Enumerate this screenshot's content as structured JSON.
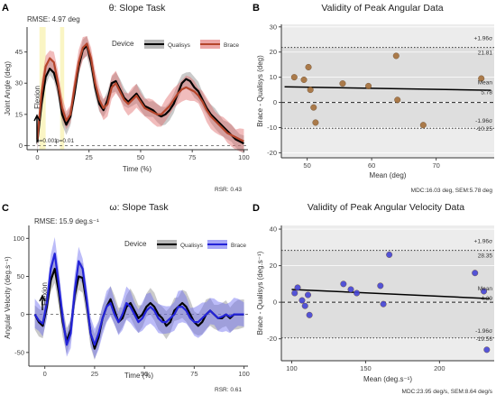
{
  "chart_data": [
    {
      "panel": "A",
      "type": "line",
      "title": "θ: Slope Task",
      "rmse": "RMSE: 4.97 deg",
      "xlabel": "Time (%)",
      "ylabel": "Joint Angle (deg)",
      "xlim": [
        -5,
        102
      ],
      "ylim": [
        -2,
        57
      ],
      "xticks": [
        0,
        25,
        50,
        75,
        100
      ],
      "yticks": [
        0,
        15,
        30,
        45
      ],
      "legend_title": "Device",
      "legend_position": "top-right",
      "annotation_dir": "Flexion",
      "pvals": [
        "p=0.001",
        "p=0.01"
      ],
      "highlight_spans": [
        [
          1,
          4
        ],
        [
          11,
          13
        ]
      ],
      "rsr": "RSR: 0.43",
      "series": [
        {
          "name": "Qualisys",
          "color": "#000000",
          "band_color": "#8a8a8a",
          "x": [
            0,
            2,
            4,
            6,
            8,
            10,
            12,
            14,
            16,
            18,
            20,
            22,
            24,
            26,
            28,
            30,
            32,
            34,
            36,
            38,
            40,
            42,
            44,
            46,
            48,
            50,
            52,
            54,
            56,
            58,
            60,
            62,
            64,
            66,
            68,
            70,
            72,
            74,
            76,
            78,
            80,
            82,
            84,
            86,
            88,
            90,
            92,
            94,
            96,
            98,
            100
          ],
          "y": [
            2,
            20,
            33,
            37,
            35,
            28,
            15,
            10,
            14,
            25,
            38,
            46,
            48,
            40,
            28,
            20,
            17,
            22,
            30,
            31,
            27,
            23,
            21,
            23,
            25,
            22,
            19,
            18,
            17,
            15,
            14,
            15,
            17,
            20,
            25,
            30,
            32,
            31,
            28,
            26,
            22,
            18,
            15,
            13,
            11,
            9,
            7,
            5,
            3,
            2,
            1
          ]
        },
        {
          "name": "Brace",
          "color": "#b5452b",
          "band_color": "#e06a6a",
          "x": [
            0,
            2,
            4,
            6,
            8,
            10,
            12,
            14,
            16,
            18,
            20,
            22,
            24,
            26,
            28,
            30,
            32,
            34,
            36,
            38,
            40,
            42,
            44,
            46,
            48,
            50,
            52,
            54,
            56,
            58,
            60,
            62,
            64,
            66,
            68,
            70,
            72,
            74,
            76,
            78,
            80,
            82,
            84,
            86,
            88,
            90,
            92,
            94,
            96,
            98,
            100
          ],
          "y": [
            3,
            25,
            38,
            42,
            40,
            30,
            18,
            12,
            15,
            28,
            40,
            47,
            49,
            42,
            30,
            22,
            18,
            20,
            28,
            30,
            26,
            22,
            20,
            22,
            24,
            21,
            18,
            17,
            16,
            15,
            15,
            17,
            19,
            22,
            25,
            27,
            28,
            27,
            26,
            24,
            21,
            17,
            14,
            12,
            10,
            8,
            6,
            5,
            4,
            3,
            2
          ]
        }
      ]
    },
    {
      "panel": "B",
      "type": "scatter",
      "title": "Validity of Peak Angular Data",
      "xlabel": "Mean (deg)",
      "ylabel": "Brace - Qualisys (deg)",
      "xlim": [
        46,
        79
      ],
      "ylim": [
        -22,
        31
      ],
      "xticks": [
        50,
        60,
        70
      ],
      "yticks": [
        -20,
        -10,
        0,
        10,
        20,
        30
      ],
      "points": [
        [
          48,
          10
        ],
        [
          49.5,
          9
        ],
        [
          50.2,
          14
        ],
        [
          50.5,
          5
        ],
        [
          51,
          -2
        ],
        [
          51.3,
          -8
        ],
        [
          55.5,
          7.5
        ],
        [
          59.5,
          6.5
        ],
        [
          63.8,
          18.5
        ],
        [
          64,
          1
        ],
        [
          68,
          -9
        ],
        [
          77,
          9.5
        ]
      ],
      "point_color": "#a5703a",
      "mean": 5.78,
      "upper": 21.81,
      "lower": -10.25,
      "labels": {
        "upper_name": "+1.96σ",
        "upper_val": "21.81",
        "mean_name": "Mean",
        "mean_val": "5.78",
        "lower_name": "-1.96σ",
        "lower_val": "-10.25"
      },
      "regression": [
        [
          46.5,
          6.2
        ],
        [
          78.5,
          4.8
        ]
      ],
      "footer": "MDC:16.03 deg, SEM:5.78 deg"
    },
    {
      "panel": "C",
      "type": "line",
      "title": "ω: Slope Task",
      "rmse": "RMSE: 15.9 deg.s⁻¹",
      "xlabel": "Time (%)",
      "ylabel": "Angular Velocity (deg.s⁻¹)",
      "xlim": [
        -8,
        102
      ],
      "ylim": [
        -68,
        117
      ],
      "xticks": [
        0,
        25,
        50,
        75,
        100
      ],
      "yticks": [
        -50,
        0,
        50,
        100
      ],
      "legend_title": "Device",
      "legend_position": "top-right",
      "annotation_dir": "Flexion",
      "rsr": "RSR: 0.61",
      "series": [
        {
          "name": "Qualisys",
          "color": "#000000",
          "band_color": "#8a8a8a",
          "x": [
            -5,
            -3,
            -1,
            1,
            3,
            5,
            7,
            9,
            11,
            13,
            15,
            17,
            19,
            21,
            23,
            25,
            27,
            29,
            31,
            33,
            35,
            37,
            39,
            41,
            43,
            45,
            47,
            49,
            51,
            53,
            55,
            57,
            59,
            61,
            63,
            65,
            67,
            69,
            71,
            73,
            75,
            77,
            79,
            81,
            83,
            85,
            87,
            89,
            91,
            93,
            95,
            97,
            100
          ],
          "y": [
            0,
            -10,
            -15,
            10,
            45,
            60,
            30,
            -10,
            -35,
            -20,
            25,
            50,
            48,
            15,
            -25,
            -45,
            -30,
            -5,
            10,
            20,
            5,
            -10,
            -5,
            10,
            15,
            5,
            -5,
            0,
            10,
            15,
            10,
            0,
            -5,
            -15,
            -10,
            5,
            10,
            15,
            10,
            0,
            -10,
            -15,
            -10,
            0,
            5,
            0,
            -5,
            -5,
            0,
            -5,
            0,
            0,
            0
          ]
        },
        {
          "name": "Brace",
          "color": "#2323d8",
          "band_color": "#6b6bf0",
          "x": [
            -5,
            -3,
            -1,
            1,
            3,
            5,
            7,
            9,
            11,
            13,
            15,
            17,
            19,
            21,
            23,
            25,
            27,
            29,
            31,
            33,
            35,
            37,
            39,
            41,
            43,
            45,
            47,
            49,
            51,
            53,
            55,
            57,
            59,
            61,
            63,
            65,
            67,
            69,
            71,
            73,
            75,
            77,
            79,
            81,
            83,
            85,
            87,
            89,
            91,
            93,
            95,
            97,
            100
          ],
          "y": [
            0,
            -8,
            -12,
            15,
            60,
            80,
            40,
            -5,
            -40,
            -25,
            30,
            70,
            60,
            20,
            -25,
            -40,
            -25,
            -5,
            10,
            15,
            0,
            -10,
            0,
            15,
            10,
            0,
            -10,
            -5,
            5,
            10,
            5,
            -5,
            -10,
            -10,
            -5,
            0,
            10,
            10,
            5,
            -5,
            -10,
            -10,
            -5,
            0,
            5,
            0,
            -5,
            -3,
            0,
            -3,
            0,
            0,
            0
          ]
        }
      ]
    },
    {
      "panel": "D",
      "type": "scatter",
      "title": "Validity of Peak Angular Velocity Data",
      "xlabel": "Mean (deg.s⁻¹)",
      "ylabel": "Brace - Qualisys (deg.s⁻¹)",
      "xlim": [
        93,
        237
      ],
      "ylim": [
        -32,
        42
      ],
      "xticks": [
        100,
        150,
        200
      ],
      "yticks": [
        -20,
        0,
        20,
        40
      ],
      "points": [
        [
          102,
          5
        ],
        [
          104,
          8
        ],
        [
          107,
          1
        ],
        [
          109,
          -2
        ],
        [
          111,
          4
        ],
        [
          112,
          -7
        ],
        [
          135,
          10
        ],
        [
          140,
          7
        ],
        [
          144,
          5
        ],
        [
          160,
          9
        ],
        [
          162,
          -1
        ],
        [
          166,
          26
        ],
        [
          224,
          16
        ],
        [
          230,
          6
        ],
        [
          232,
          -26
        ]
      ],
      "point_color": "#4545d6",
      "mean": 4.39,
      "upper": 28.35,
      "lower": -19.56,
      "labels": {
        "upper_name": "+1.96σ",
        "upper_val": "28.35",
        "mean_name": "Mean",
        "mean_val": "4.39",
        "lower_name": "-1.96σ",
        "lower_val": "-19.56"
      },
      "regression": [
        [
          100,
          7
        ],
        [
          234,
          2
        ]
      ],
      "footer": "MDC:23.95 deg/s, SEM:8.64 deg/s"
    }
  ]
}
